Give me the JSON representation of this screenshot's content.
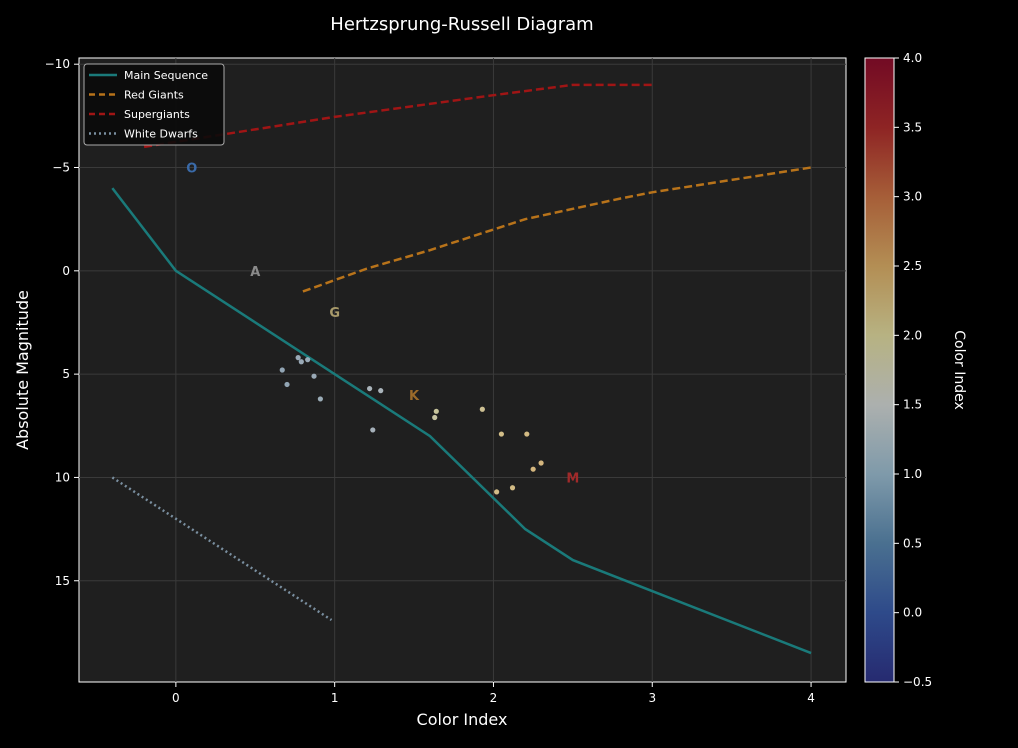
{
  "chart_data": {
    "type": "line",
    "title": "Hertzsprung-Russell Diagram",
    "xlabel": "Color Index",
    "ylabel": "Absolute Magnitude",
    "xlim": [
      -0.61,
      4.22
    ],
    "ylim": [
      19.9,
      -10.3
    ],
    "y_inverted": true,
    "grid": true,
    "legend_placement": "top-left",
    "x_ticks": [
      "0",
      "1",
      "2",
      "3",
      "4"
    ],
    "x_tick_values": [
      0,
      1,
      2,
      3,
      4
    ],
    "y_ticks": [
      "−10",
      "−5",
      "0",
      "5",
      "10",
      "15"
    ],
    "y_tick_values": [
      -10,
      -5,
      0,
      5,
      10,
      15
    ],
    "series": [
      {
        "name": "Main Sequence",
        "style": "solid",
        "color": "#1a7a7a",
        "x": [
          -0.4,
          0,
          1.6,
          2.2,
          2.5,
          4.0
        ],
        "y": [
          -4,
          0,
          8,
          12.5,
          14,
          18.5
        ]
      },
      {
        "name": "Red Giants",
        "style": "dashed",
        "color": "#b8731a",
        "x": [
          0.8,
          1.2,
          1.6,
          2.2,
          2.5,
          2.8,
          3.0,
          4.0
        ],
        "y": [
          1,
          -0.1,
          -1,
          -2.5,
          -3,
          -3.5,
          -3.8,
          -5
        ]
      },
      {
        "name": "Supergiants",
        "style": "dashed",
        "color": "#a01515",
        "x": [
          -0.2,
          1.0,
          2.0,
          2.5,
          3.0
        ],
        "y": [
          -6,
          -7.45,
          -8.5,
          -9,
          -9
        ]
      },
      {
        "name": "White Dwarfs",
        "style": "dotted",
        "color": "#7a8fa0",
        "x": [
          -0.4,
          0.98
        ],
        "y": [
          10,
          16.9
        ]
      }
    ],
    "scatter": [
      {
        "x": 0.67,
        "y": 4.8,
        "color": "#9fb4c4"
      },
      {
        "x": 0.7,
        "y": 5.5,
        "color": "#9fb4c4"
      },
      {
        "x": 0.77,
        "y": 4.2,
        "color": "#a6b8c6"
      },
      {
        "x": 0.79,
        "y": 4.4,
        "color": "#a6b8c6"
      },
      {
        "x": 0.83,
        "y": 4.3,
        "color": "#a6b8c6"
      },
      {
        "x": 0.87,
        "y": 5.1,
        "color": "#a6b8c6"
      },
      {
        "x": 0.91,
        "y": 6.2,
        "color": "#a9bbc8"
      },
      {
        "x": 1.22,
        "y": 5.7,
        "color": "#b9c4cc"
      },
      {
        "x": 1.29,
        "y": 5.8,
        "color": "#b9c4cc"
      },
      {
        "x": 1.24,
        "y": 7.7,
        "color": "#b4c0ca"
      },
      {
        "x": 1.64,
        "y": 6.8,
        "color": "#d9d6a8"
      },
      {
        "x": 1.63,
        "y": 7.1,
        "color": "#d9d6b0"
      },
      {
        "x": 1.93,
        "y": 6.7,
        "color": "#e0d2a0"
      },
      {
        "x": 2.05,
        "y": 7.9,
        "color": "#e6cf94"
      },
      {
        "x": 2.21,
        "y": 7.9,
        "color": "#e6cb8e"
      },
      {
        "x": 2.3,
        "y": 9.3,
        "color": "#e8c688"
      },
      {
        "x": 2.25,
        "y": 9.6,
        "color": "#e8c688"
      },
      {
        "x": 2.12,
        "y": 10.5,
        "color": "#e6cc90"
      },
      {
        "x": 2.02,
        "y": 10.7,
        "color": "#e6ce94"
      }
    ],
    "annotations": [
      {
        "text": "O",
        "x": 0.1,
        "y": -5,
        "color": "#3a6aa8"
      },
      {
        "text": "A",
        "x": 0.5,
        "y": 0,
        "color": "#8a8a8a"
      },
      {
        "text": "G",
        "x": 1.0,
        "y": 2,
        "color": "#a89a6a"
      },
      {
        "text": "K",
        "x": 1.5,
        "y": 6,
        "color": "#9a6a2a"
      },
      {
        "text": "M",
        "x": 2.5,
        "y": 10,
        "color": "#a02a2a"
      }
    ],
    "colorbar": {
      "label": "Color Index",
      "range": [
        -0.5,
        4.0
      ],
      "ticks": [
        "−0.5",
        "0.0",
        "0.5",
        "1.0",
        "1.5",
        "2.0",
        "2.5",
        "3.0",
        "3.5",
        "4.0"
      ],
      "tick_values": [
        -0.5,
        0,
        0.5,
        1,
        1.5,
        2,
        2.5,
        3,
        3.5,
        4
      ],
      "colors": [
        "#262a70",
        "#2e4a8a",
        "#4a7090",
        "#7f9aaa",
        "#acb0ae",
        "#b7b282",
        "#b38e54",
        "#a65e38",
        "#8e2424",
        "#720a24"
      ]
    }
  }
}
